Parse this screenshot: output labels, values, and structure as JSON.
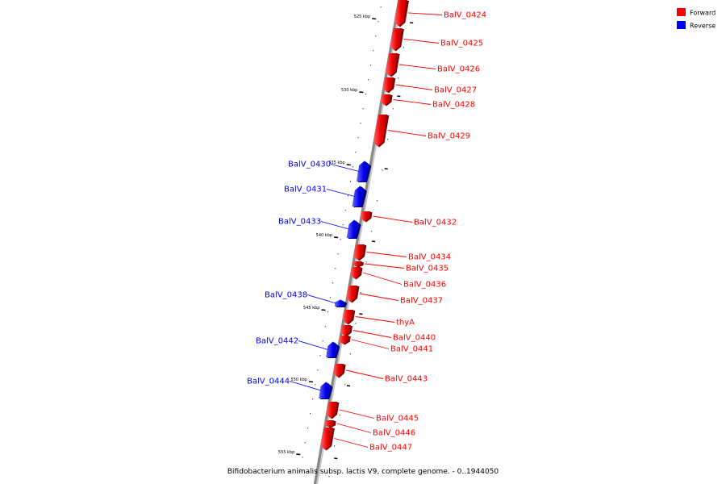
{
  "caption": "Bifidobacterium animalis subsp. lactis V9, complete genome. - 0..1944050",
  "legend": [
    {
      "label": "Forward",
      "color": "#ff0000"
    },
    {
      "label": "Reverse",
      "color": "#0000ff"
    }
  ],
  "ticks": [
    "525 kbp",
    "530 kbp",
    "535 kbp",
    "540 kbp",
    "545 kbp",
    "550 kbp",
    "555 kbp"
  ],
  "genes": [
    {
      "name": "BalV_0424",
      "strand": "forward"
    },
    {
      "name": "BalV_0425",
      "strand": "forward"
    },
    {
      "name": "BalV_0426",
      "strand": "forward"
    },
    {
      "name": "BalV_0427",
      "strand": "forward"
    },
    {
      "name": "BalV_0428",
      "strand": "forward"
    },
    {
      "name": "BalV_0429",
      "strand": "forward"
    },
    {
      "name": "BalV_0430",
      "strand": "reverse"
    },
    {
      "name": "BalV_0431",
      "strand": "reverse"
    },
    {
      "name": "BalV_0432",
      "strand": "forward"
    },
    {
      "name": "BalV_0433",
      "strand": "reverse"
    },
    {
      "name": "BalV_0434",
      "strand": "forward"
    },
    {
      "name": "BalV_0435",
      "strand": "forward"
    },
    {
      "name": "BalV_0436",
      "strand": "forward"
    },
    {
      "name": "BalV_0437",
      "strand": "forward"
    },
    {
      "name": "BalV_0438",
      "strand": "reverse"
    },
    {
      "name": "thyA",
      "strand": "forward"
    },
    {
      "name": "BalV_0440",
      "strand": "forward"
    },
    {
      "name": "BalV_0441",
      "strand": "forward"
    },
    {
      "name": "BalV_0442",
      "strand": "reverse"
    },
    {
      "name": "BalV_0443",
      "strand": "forward"
    },
    {
      "name": "BalV_0444",
      "strand": "reverse"
    },
    {
      "name": "BalV_0445",
      "strand": "forward"
    },
    {
      "name": "BalV_0446",
      "strand": "forward"
    },
    {
      "name": "BalV_0447",
      "strand": "forward"
    }
  ]
}
